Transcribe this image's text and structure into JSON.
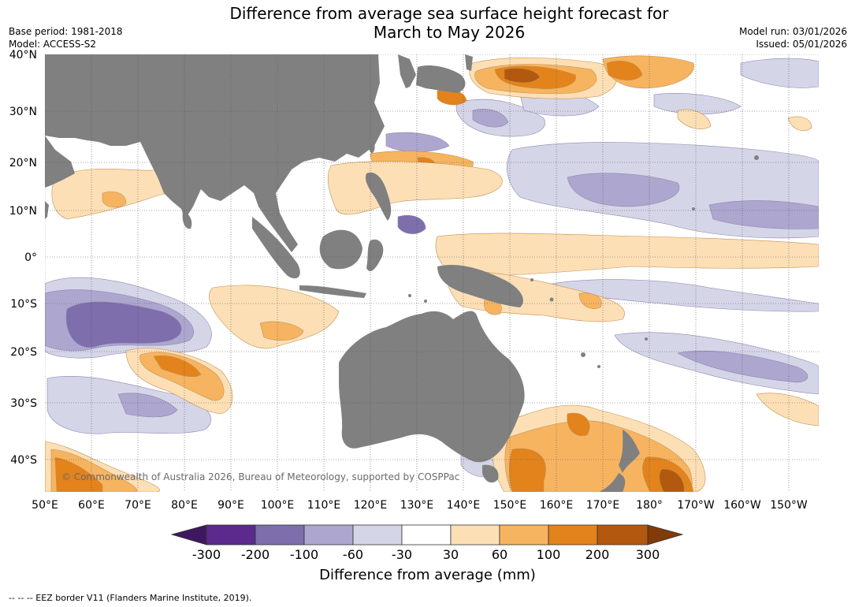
{
  "title_line1": "Difference from average sea surface height forecast for",
  "title_line2": "March to May 2026",
  "base_period": "Base period: 1981-2018",
  "model": "Model: ACCESS-S2",
  "model_run": "Model run: 03/01/2026",
  "issued": "Issued: 05/01/2026",
  "latitude_labels": [
    "40°N",
    "30°N",
    "20°N",
    "10°N",
    "0°",
    "10°S",
    "20°S",
    "30°S",
    "40°S"
  ],
  "longitude_labels": [
    "50°E",
    "60°E",
    "70°E",
    "80°E",
    "90°E",
    "100°E",
    "110°E",
    "120°E",
    "130°E",
    "140°E",
    "150°E",
    "160°E",
    "170°E",
    "180°",
    "170°W",
    "160°W",
    "150°W"
  ],
  "copyright": "© Commonwealth of Australia 2026, Bureau of Meteorology, supported by COSPPac",
  "colorbar": {
    "label": "Difference from average (mm)",
    "ticks": [
      "-300",
      "-200",
      "-100",
      "-60",
      "-30",
      "30",
      "60",
      "100",
      "200",
      "300"
    ],
    "colors": [
      "#3f1760",
      "#5b2a8c",
      "#7e6eac",
      "#ada6ce",
      "#d5d5e8",
      "#ffffff",
      "#fddfb6",
      "#f6b461",
      "#e2831c",
      "#b3580f",
      "#7f3b08"
    ]
  },
  "footnote": "--  --  -- EEZ border V11 (Flanders Marine Institute, 2019).",
  "colors": {
    "land": "#808080",
    "grid": "#555555"
  }
}
